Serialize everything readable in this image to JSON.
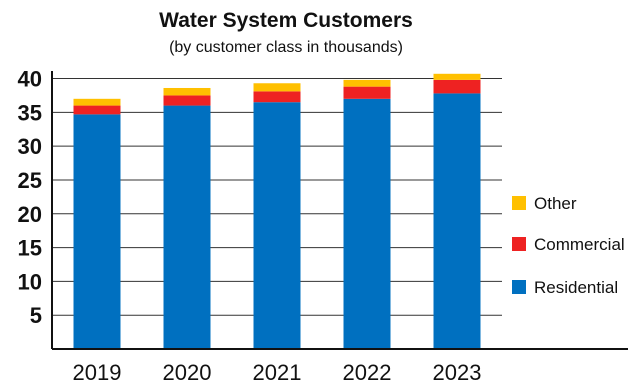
{
  "chart_data": {
    "type": "bar",
    "stacked": true,
    "title": "Water System Customers",
    "subtitle": "(by customer class in thousands)",
    "categories": [
      "2019",
      "2020",
      "2021",
      "2022",
      "2023"
    ],
    "series": [
      {
        "name": "Residential",
        "color": "#0070c0",
        "values": [
          34.7,
          36.0,
          36.5,
          37.0,
          37.8
        ]
      },
      {
        "name": "Commercial",
        "color": "#ee2222",
        "values": [
          1.3,
          1.5,
          1.6,
          1.8,
          2.0
        ]
      },
      {
        "name": "Other",
        "color": "#ffc000",
        "values": [
          1.0,
          1.1,
          1.2,
          1.0,
          0.9
        ]
      }
    ],
    "yticks": [
      5,
      10,
      15,
      20,
      25,
      30,
      35,
      40
    ],
    "ylim": [
      0,
      42
    ],
    "grid": true,
    "legend_position": "right",
    "legend_order": [
      "Other",
      "Commercial",
      "Residential"
    ]
  }
}
